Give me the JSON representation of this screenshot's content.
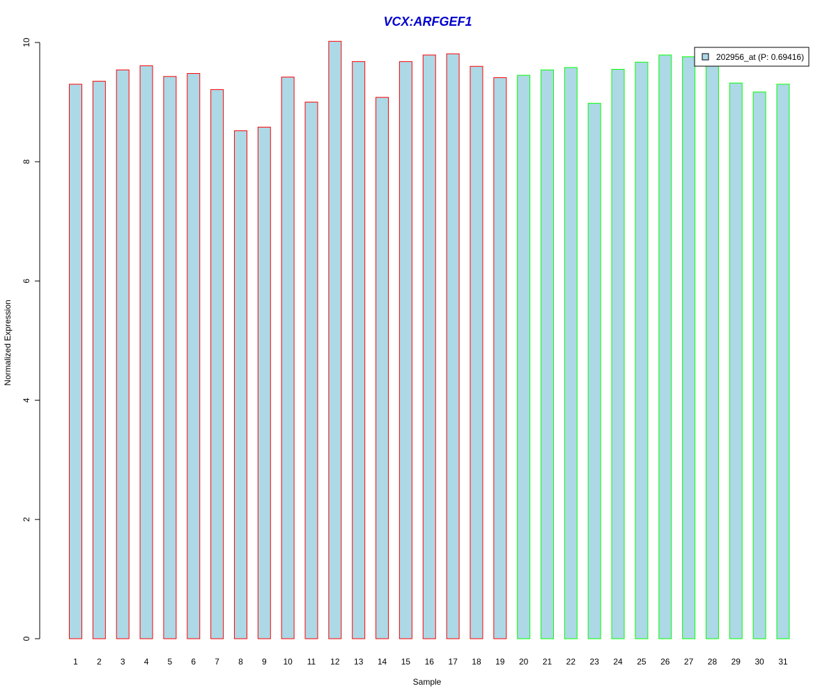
{
  "chart_data": {
    "type": "bar",
    "title": "VCX:ARFGEF1",
    "xlabel": "Sample",
    "ylabel": "Normalized Expression",
    "ylim": [
      0,
      10
    ],
    "yticks": [
      0,
      2,
      4,
      6,
      8,
      10
    ],
    "categories": [
      "1",
      "2",
      "3",
      "4",
      "5",
      "6",
      "7",
      "8",
      "9",
      "10",
      "11",
      "12",
      "13",
      "14",
      "15",
      "16",
      "17",
      "18",
      "19",
      "20",
      "21",
      "22",
      "23",
      "24",
      "25",
      "26",
      "27",
      "28",
      "29",
      "30",
      "31"
    ],
    "series": [
      {
        "name": "202956_at (P: 0.69416)",
        "fill": "#add8e6",
        "values": [
          9.3,
          9.35,
          9.54,
          9.61,
          9.43,
          9.48,
          9.21,
          8.52,
          8.58,
          9.42,
          9.0,
          10.02,
          9.68,
          9.08,
          9.68,
          9.79,
          9.81,
          9.6,
          9.41,
          9.45,
          9.54,
          9.58,
          8.98,
          9.55,
          9.67,
          9.79,
          9.76,
          9.7,
          9.32,
          9.17,
          9.3
        ]
      }
    ],
    "border_colors": [
      "#ff0000",
      "#ff0000",
      "#ff0000",
      "#ff0000",
      "#ff0000",
      "#ff0000",
      "#ff0000",
      "#ff0000",
      "#ff0000",
      "#ff0000",
      "#ff0000",
      "#ff0000",
      "#ff0000",
      "#ff0000",
      "#ff0000",
      "#ff0000",
      "#ff0000",
      "#ff0000",
      "#ff0000",
      "#00ff00",
      "#00ff00",
      "#00ff00",
      "#00ff00",
      "#00ff00",
      "#00ff00",
      "#00ff00",
      "#00ff00",
      "#00ff00",
      "#00ff00",
      "#00ff00",
      "#00ff00"
    ],
    "title_color": "#0000cc",
    "legend_position": "top-right",
    "grid": false
  }
}
